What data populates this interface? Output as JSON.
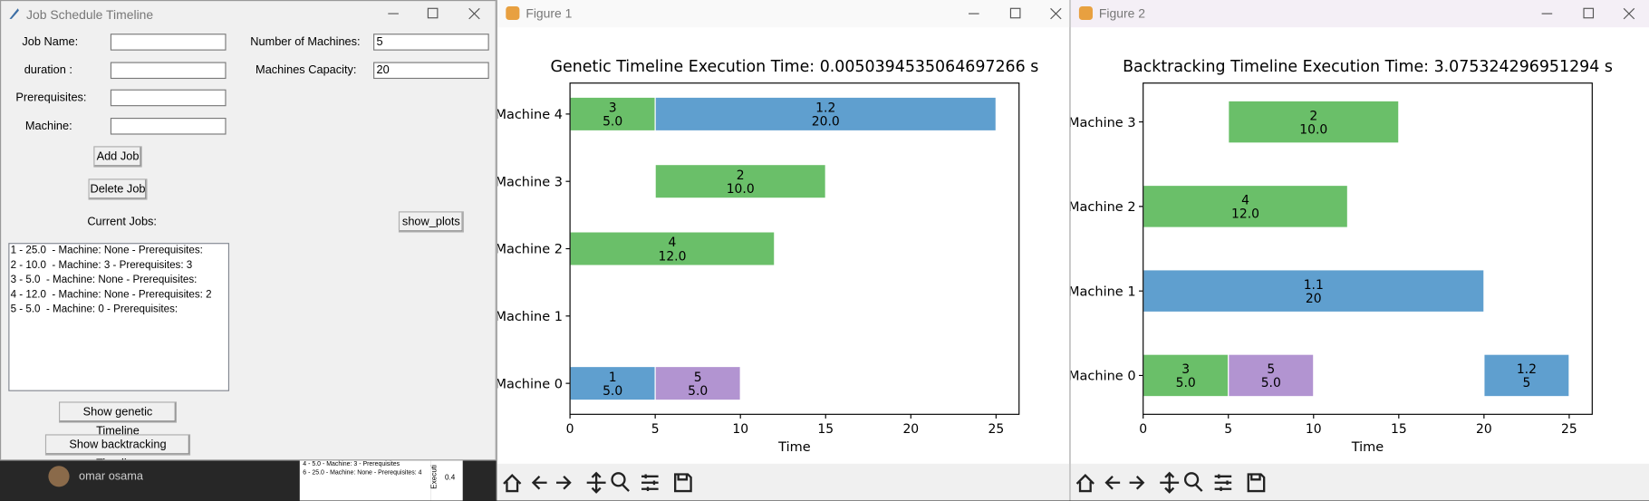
{
  "app": {
    "title": "Job Schedule Timeline",
    "fields": [
      {
        "label": "Job Name:"
      },
      {
        "label": "duration :"
      },
      {
        "label": "Prerequisites:"
      },
      {
        "label": "Machine:"
      }
    ],
    "settings": [
      {
        "label": "Number of Machines:",
        "value": "5"
      },
      {
        "label": "Machines Capacity:",
        "value": "20"
      }
    ],
    "buttons": {
      "add": "Add Job",
      "delete": "Delete Job",
      "show_plots": "show_plots",
      "genetic": "Show genetic Timeline",
      "backtracking": "Show backtracking Timeline"
    },
    "current_jobs_label": "Current Jobs:",
    "jobs": [
      "1 - 25.0  - Machine: None - Prerequisites: ",
      "2 - 10.0  - Machine: 3 - Prerequisites: 3",
      "3 - 5.0  - Machine: None - Prerequisites: ",
      "4 - 12.0  - Machine: None - Prerequisites: 2",
      "5 - 5.0  - Machine: 0 - Prerequisites: "
    ]
  },
  "figures": [
    {
      "title": "Figure 1"
    },
    {
      "title": "Figure 2"
    }
  ],
  "background": {
    "user": "omar osama",
    "snippets": [
      "4 - 5.0 - Machine: 3 - Prerequisites",
      "6 - 25.0 - Machine: None - Prerequisites: 4"
    ],
    "axis_text": "Executi",
    "tick_text": "0.4"
  },
  "chart_data": [
    {
      "type": "gantt",
      "title": "Genetic Timeline Execution Time: 0.0050394535064697266 s",
      "x_label": "Time",
      "categories": [
        "Machine 0",
        "Machine 1",
        "Machine 2",
        "Machine 3",
        "Machine 4"
      ],
      "xlim": [
        0,
        26.35
      ],
      "xticks": [
        0,
        5,
        10,
        15,
        20,
        25
      ],
      "tasks": [
        {
          "machine": "Machine 4",
          "job": "3",
          "start": 0,
          "duration": 5,
          "duration_label": "5.0",
          "color": "#6abf69"
        },
        {
          "machine": "Machine 4",
          "job": "1.2",
          "start": 5,
          "duration": 20,
          "duration_label": "20.0",
          "color": "#5f9fcf"
        },
        {
          "machine": "Machine 3",
          "job": "2",
          "start": 5,
          "duration": 10,
          "duration_label": "10.0",
          "color": "#6abf69"
        },
        {
          "machine": "Machine 2",
          "job": "4",
          "start": 0,
          "duration": 12,
          "duration_label": "12.0",
          "color": "#6abf69"
        },
        {
          "machine": "Machine 0",
          "job": "1",
          "start": 0,
          "duration": 5,
          "duration_label": "5.0",
          "color": "#5f9fcf"
        },
        {
          "machine": "Machine 0",
          "job": "5",
          "start": 5,
          "duration": 5,
          "duration_label": "5.0",
          "color": "#b294d1"
        }
      ]
    },
    {
      "type": "gantt",
      "title": "Backtracking Timeline Execution Time: 3.075324296951294 s",
      "x_label": "Time",
      "categories": [
        "Machine 0",
        "Machine 1",
        "Machine 2",
        "Machine 3"
      ],
      "xlim": [
        0,
        26.35
      ],
      "xticks": [
        0,
        5,
        10,
        15,
        20,
        25
      ],
      "tasks": [
        {
          "machine": "Machine 3",
          "job": "2",
          "start": 5,
          "duration": 10,
          "duration_label": "10.0",
          "color": "#6abf69"
        },
        {
          "machine": "Machine 2",
          "job": "4",
          "start": 0,
          "duration": 12,
          "duration_label": "12.0",
          "color": "#6abf69"
        },
        {
          "machine": "Machine 1",
          "job": "1.1",
          "start": 0,
          "duration": 20,
          "duration_label": "20",
          "color": "#5f9fcf"
        },
        {
          "machine": "Machine 0",
          "job": "3",
          "start": 0,
          "duration": 5,
          "duration_label": "5.0",
          "color": "#6abf69"
        },
        {
          "machine": "Machine 0",
          "job": "5",
          "start": 5,
          "duration": 5,
          "duration_label": "5.0",
          "color": "#b294d1"
        },
        {
          "machine": "Machine 0",
          "job": "1.2",
          "start": 20,
          "duration": 5,
          "duration_label": "5",
          "color": "#5f9fcf"
        }
      ]
    }
  ]
}
